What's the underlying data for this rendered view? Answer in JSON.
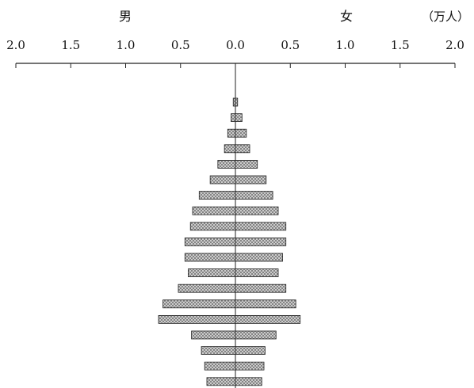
{
  "chart_data": {
    "type": "bar",
    "orientation": "horizontal",
    "subtype": "population-pyramid",
    "title": "",
    "xlabel": "",
    "ylabel": "",
    "unit_label": "（万人）",
    "sides": {
      "left": "男",
      "right": "女"
    },
    "xlim": [
      -2.0,
      2.0
    ],
    "x_ticks": [
      -2.0,
      -1.5,
      -1.0,
      -0.5,
      0.0,
      0.5,
      1.0,
      1.5,
      2.0
    ],
    "x_tick_labels": [
      "2.0",
      "1.5",
      "1.0",
      "0.5",
      "0.0",
      "0.5",
      "1.0",
      "1.5",
      "2.0"
    ],
    "grid": false,
    "legend": "none",
    "colors": {
      "bar_fill": "#cfcfcf",
      "bar_edge": "#222222",
      "axis": "#222222"
    },
    "series": [
      {
        "name": "男",
        "values": [
          0.02,
          0.04,
          0.07,
          0.1,
          0.16,
          0.23,
          0.33,
          0.39,
          0.41,
          0.46,
          0.46,
          0.43,
          0.52,
          0.66,
          0.7,
          0.4,
          0.31,
          0.28,
          0.26
        ]
      },
      {
        "name": "女",
        "values": [
          0.02,
          0.06,
          0.1,
          0.13,
          0.2,
          0.28,
          0.34,
          0.39,
          0.46,
          0.46,
          0.43,
          0.39,
          0.46,
          0.55,
          0.59,
          0.37,
          0.27,
          0.26,
          0.24
        ]
      }
    ]
  }
}
